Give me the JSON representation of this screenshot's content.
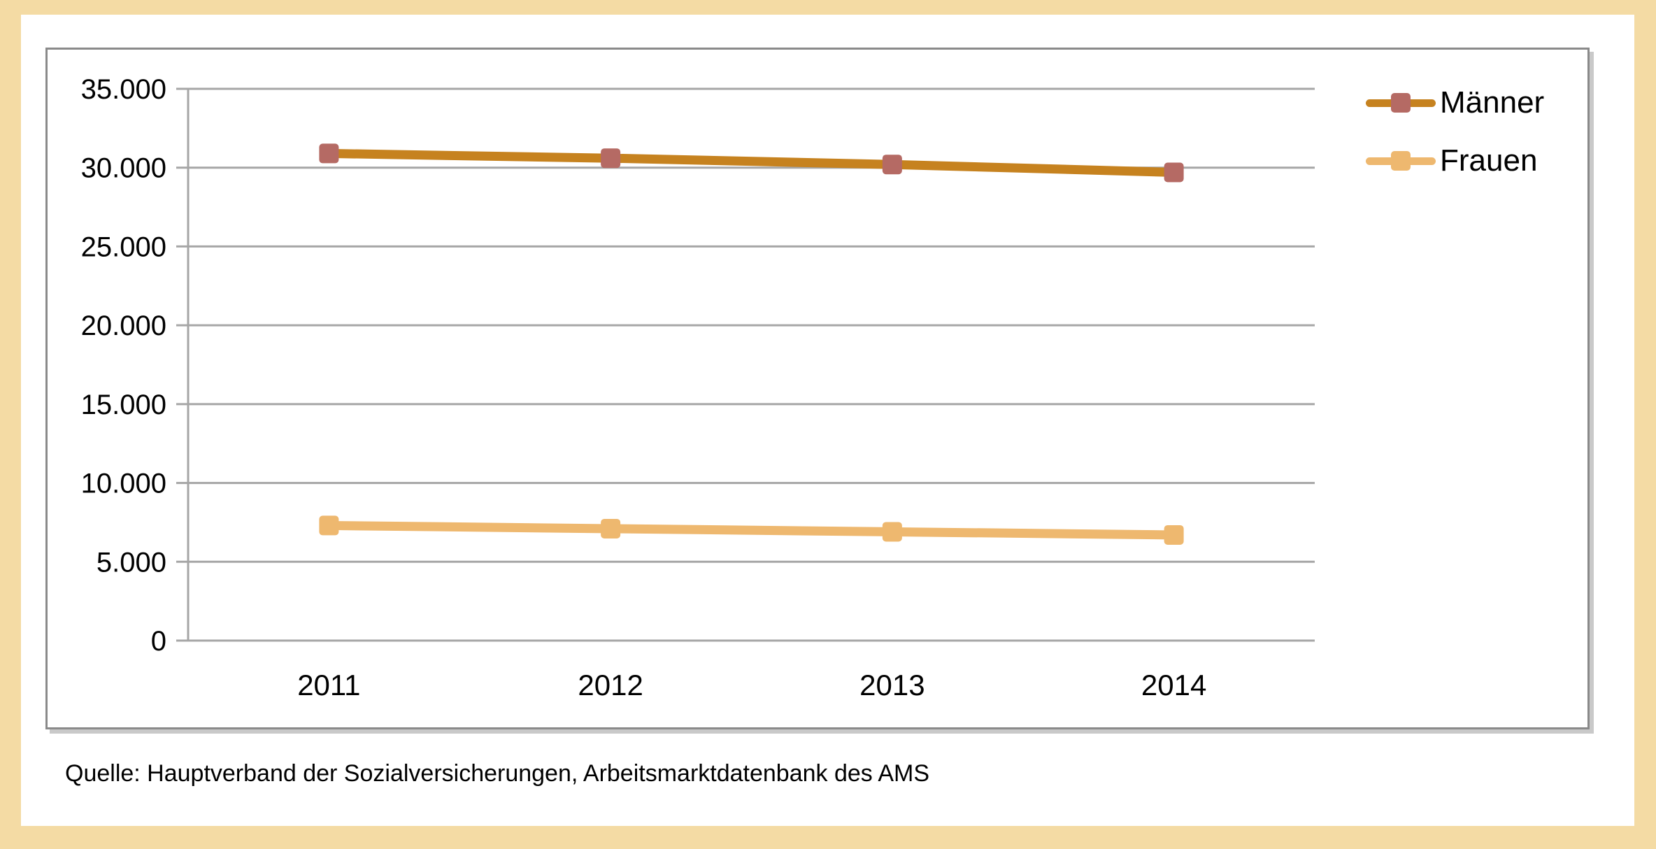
{
  "page": {
    "source_note": "Quelle: Hauptverband der Sozialversicherungen, Arbeitsmarktdatenbank des AMS"
  },
  "colors": {
    "page_border": "#F4DBA4",
    "frame_border": "#8A8A8A",
    "gridline": "#A6A6A6",
    "axis_line": "#A6A6A6",
    "text": "#000000",
    "maenner_line": "#C6821F",
    "maenner_marker": "#B56A64",
    "frauen_line": "#EEB86F",
    "frauen_marker": "#EEB86F"
  },
  "chart_data": {
    "type": "line",
    "title": "",
    "xlabel": "",
    "ylabel": "",
    "categories": [
      "2011",
      "2012",
      "2013",
      "2014"
    ],
    "series": [
      {
        "name": "Männer",
        "values": [
          30900,
          30600,
          30200,
          29700
        ]
      },
      {
        "name": "Frauen",
        "values": [
          7300,
          7100,
          6900,
          6700
        ]
      }
    ],
    "ylim": [
      0,
      35000
    ],
    "ytick_step": 5000,
    "ytick_labels": [
      "0",
      "5.000",
      "10.000",
      "15.000",
      "20.000",
      "25.000",
      "30.000",
      "35.000"
    ],
    "grid": true,
    "legend_position": "right-inside"
  }
}
